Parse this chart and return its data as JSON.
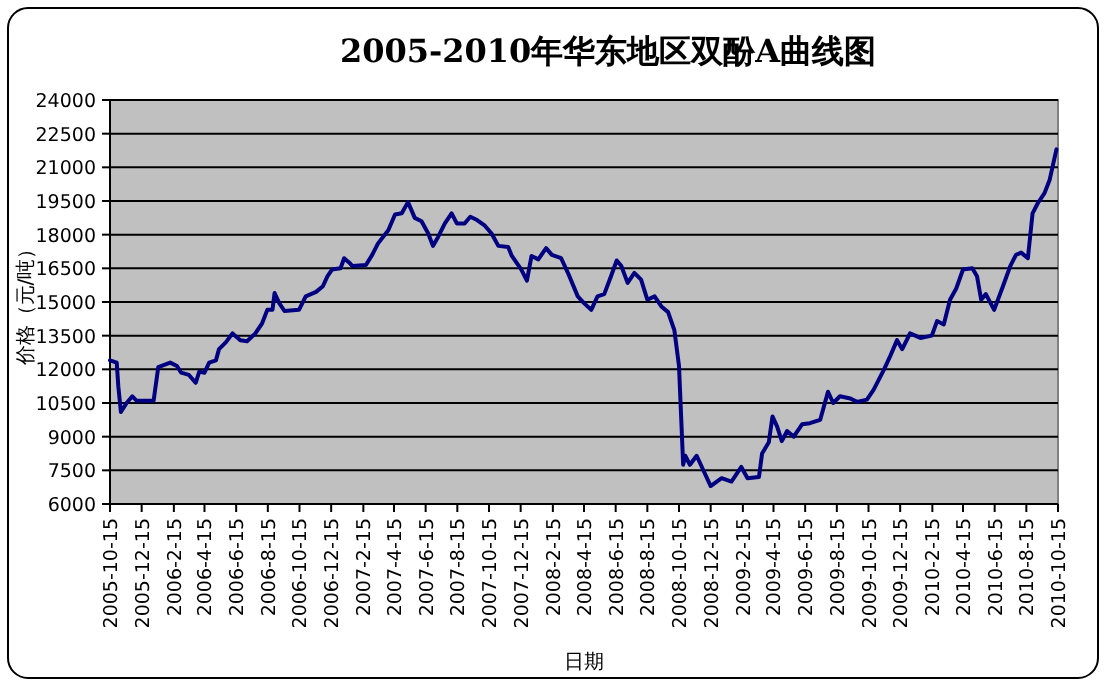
{
  "chart_data": {
    "type": "line",
    "title": "2005-2010年华东地区双酚A曲线图",
    "xlabel": "日期",
    "ylabel": "价格（元/吨）",
    "grid": "y",
    "marker": "none",
    "line_style": "solid",
    "ylim": [
      6000,
      24000
    ],
    "yticks": [
      6000,
      7500,
      9000,
      10500,
      12000,
      13500,
      15000,
      16500,
      18000,
      19500,
      21000,
      22500,
      24000
    ],
    "xlim": [
      "2005-10-15",
      "2010-10-15"
    ],
    "xticks": [
      {
        "value": "2005-10-15",
        "label": "2005-10-15"
      },
      {
        "value": "2005-12-15",
        "label": "2005-12-15"
      },
      {
        "value": "2006-02-15",
        "label": "2006-2-15"
      },
      {
        "value": "2006-04-15",
        "label": "2006-4-15"
      },
      {
        "value": "2006-06-15",
        "label": "2006-6-15"
      },
      {
        "value": "2006-08-15",
        "label": "2006-8-15"
      },
      {
        "value": "2006-10-15",
        "label": "2006-10-15"
      },
      {
        "value": "2006-12-15",
        "label": "2006-12-15"
      },
      {
        "value": "2007-02-15",
        "label": "2007-2-15"
      },
      {
        "value": "2007-04-15",
        "label": "2007-4-15"
      },
      {
        "value": "2007-06-15",
        "label": "2007-6-15"
      },
      {
        "value": "2007-08-15",
        "label": "2007-8-15"
      },
      {
        "value": "2007-10-15",
        "label": "2007-10-15"
      },
      {
        "value": "2007-12-15",
        "label": "2007-12-15"
      },
      {
        "value": "2008-02-15",
        "label": "2008-2-15"
      },
      {
        "value": "2008-04-15",
        "label": "2008-4-15"
      },
      {
        "value": "2008-06-15",
        "label": "2008-6-15"
      },
      {
        "value": "2008-08-15",
        "label": "2008-8-15"
      },
      {
        "value": "2008-10-15",
        "label": "2008-10-15"
      },
      {
        "value": "2008-12-15",
        "label": "2008-12-15"
      },
      {
        "value": "2009-02-15",
        "label": "2009-2-15"
      },
      {
        "value": "2009-04-15",
        "label": "2009-4-15"
      },
      {
        "value": "2009-06-15",
        "label": "2009-6-15"
      },
      {
        "value": "2009-08-15",
        "label": "2009-8-15"
      },
      {
        "value": "2009-10-15",
        "label": "2009-10-15"
      },
      {
        "value": "2009-12-15",
        "label": "2009-12-15"
      },
      {
        "value": "2010-02-15",
        "label": "2010-2-15"
      },
      {
        "value": "2010-04-15",
        "label": "2010-4-15"
      },
      {
        "value": "2010-06-15",
        "label": "2010-6-15"
      },
      {
        "value": "2010-08-15",
        "label": "2010-8-15"
      },
      {
        "value": "2010-10-15",
        "label": "2010-10-15"
      }
    ],
    "x": [
      "2005-10-15",
      "2005-10-28",
      "2005-10-31",
      "2005-11-05",
      "2005-11-16",
      "2005-11-27",
      "2005-12-05",
      "2006-01-07",
      "2006-01-16",
      "2006-02-08",
      "2006-02-21",
      "2006-03-01",
      "2006-03-16",
      "2006-03-29",
      "2006-04-05",
      "2006-04-15",
      "2006-04-24",
      "2006-05-07",
      "2006-05-13",
      "2006-05-26",
      "2006-06-08",
      "2006-06-23",
      "2006-07-06",
      "2006-07-22",
      "2006-08-04",
      "2006-08-14",
      "2006-08-24",
      "2006-08-28",
      "2006-09-06",
      "2006-09-16",
      "2006-10-14",
      "2006-10-27",
      "2006-11-16",
      "2006-11-29",
      "2006-12-08",
      "2006-12-17",
      "2007-01-02",
      "2007-01-09",
      "2007-01-19",
      "2007-01-25",
      "2007-02-20",
      "2007-03-04",
      "2007-03-15",
      "2007-04-04",
      "2007-04-17",
      "2007-04-30",
      "2007-05-12",
      "2007-05-25",
      "2007-06-07",
      "2007-06-20",
      "2007-06-29",
      "2007-07-09",
      "2007-07-22",
      "2007-08-04",
      "2007-08-14",
      "2007-08-29",
      "2007-09-09",
      "2007-09-22",
      "2007-10-07",
      "2007-10-20",
      "2007-11-02",
      "2007-11-21",
      "2007-11-28",
      "2007-12-16",
      "2007-12-27",
      "2008-01-05",
      "2008-01-18",
      "2008-02-02",
      "2008-02-13",
      "2008-03-02",
      "2008-03-15",
      "2008-04-03",
      "2008-04-15",
      "2008-04-29",
      "2008-05-11",
      "2008-05-24",
      "2008-06-06",
      "2008-06-17",
      "2008-06-26",
      "2008-07-08",
      "2008-07-21",
      "2008-08-03",
      "2008-08-15",
      "2008-08-29",
      "2008-09-11",
      "2008-09-24",
      "2008-10-06",
      "2008-10-15",
      "2008-10-23",
      "2008-10-27",
      "2008-11-05",
      "2008-11-18",
      "2008-11-30",
      "2008-12-15",
      "2009-01-05",
      "2009-01-24",
      "2009-02-12",
      "2009-02-24",
      "2009-03-18",
      "2009-03-24",
      "2009-04-06",
      "2009-04-13",
      "2009-04-22",
      "2009-05-01",
      "2009-05-11",
      "2009-05-24",
      "2009-06-09",
      "2009-06-24",
      "2009-07-14",
      "2009-07-29",
      "2009-08-08",
      "2009-08-21",
      "2009-09-10",
      "2009-09-23",
      "2009-10-12",
      "2009-10-25",
      "2009-11-14",
      "2009-11-26",
      "2009-12-09",
      "2009-12-19",
      "2010-01-03",
      "2010-01-23",
      "2010-02-14",
      "2010-02-24",
      "2010-03-09",
      "2010-03-21",
      "2010-04-02",
      "2010-04-15",
      "2010-05-03",
      "2010-05-12",
      "2010-05-20",
      "2010-05-29",
      "2010-06-14",
      "2010-07-01",
      "2010-07-15",
      "2010-07-26",
      "2010-08-05",
      "2010-08-18",
      "2010-08-27",
      "2010-09-06",
      "2010-09-19",
      "2010-09-29",
      "2010-10-12"
    ],
    "series": [
      {
        "color": "#000080",
        "values": [
          12400,
          12300,
          11250,
          10100,
          10500,
          10800,
          10600,
          10600,
          12100,
          12300,
          12150,
          11850,
          11750,
          11400,
          11900,
          11850,
          12300,
          12400,
          12900,
          13200,
          13600,
          13300,
          13250,
          13600,
          14050,
          14650,
          14650,
          15400,
          14950,
          14600,
          14650,
          15250,
          15450,
          15700,
          16150,
          16450,
          16500,
          16950,
          16750,
          16600,
          16650,
          17100,
          17600,
          18200,
          18900,
          18950,
          19450,
          18750,
          18600,
          18050,
          17500,
          17900,
          18500,
          18950,
          18500,
          18500,
          18800,
          18650,
          18400,
          18050,
          17500,
          17450,
          17050,
          16450,
          15950,
          17050,
          16900,
          17400,
          17100,
          16950,
          16300,
          15250,
          14950,
          14650,
          15250,
          15350,
          16150,
          16850,
          16600,
          15850,
          16300,
          16000,
          15100,
          15250,
          14800,
          14550,
          13750,
          12150,
          7750,
          8150,
          7750,
          8150,
          7550,
          6800,
          7150,
          7000,
          7650,
          7150,
          7200,
          8250,
          8750,
          9900,
          9450,
          8800,
          9250,
          9000,
          9550,
          9600,
          9750,
          11000,
          10500,
          10800,
          10700,
          10550,
          10650,
          11100,
          12000,
          12600,
          13300,
          12900,
          13600,
          13400,
          13500,
          14150,
          14000,
          15100,
          15600,
          16450,
          16500,
          16150,
          15100,
          15350,
          14650,
          15700,
          16600,
          17100,
          17200,
          16950,
          18950,
          19400,
          19850,
          20450,
          21800
        ]
      }
    ]
  }
}
